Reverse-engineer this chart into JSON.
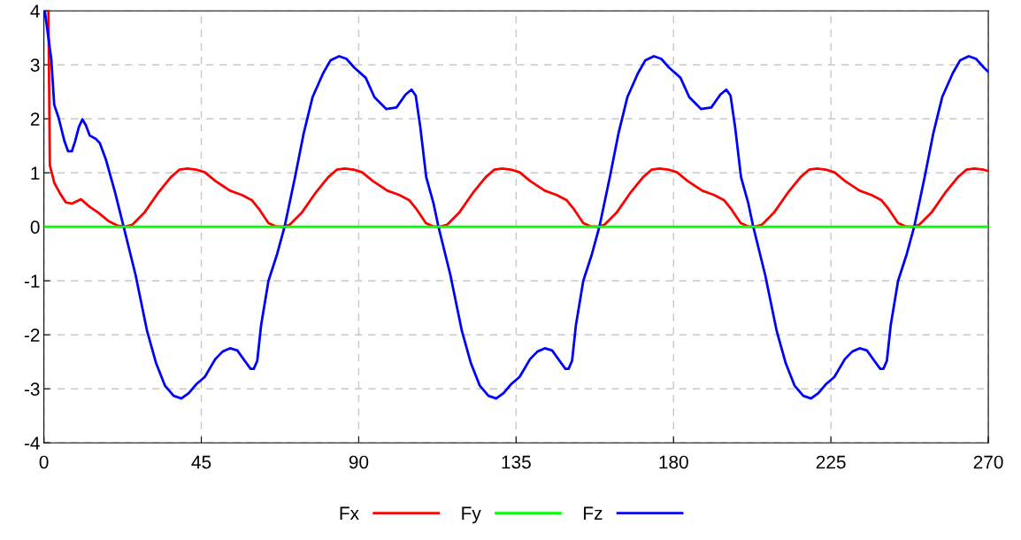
{
  "chart_data": {
    "type": "line",
    "xlim": [
      0,
      270
    ],
    "ylim": [
      -4,
      4
    ],
    "xticks": [
      0,
      45,
      90,
      135,
      180,
      225,
      270
    ],
    "yticks": [
      -4,
      -3,
      -2,
      -1,
      0,
      1,
      2,
      3,
      4
    ],
    "grid": true,
    "legend": "bottom",
    "marker": "none",
    "line_style": "solid",
    "series": [
      {
        "name": "Fx",
        "color": "#ff0000",
        "x": [
          1.3,
          1.7,
          3.0,
          4.6,
          6.3,
          8.0,
          10.6,
          13.1,
          15.6,
          18.6,
          21.1,
          23.2,
          25.3,
          28.7,
          32.9,
          36.3,
          38.8,
          41,
          43.5,
          46,
          49,
          53.2,
          56.6,
          59.5,
          61.6,
          64.2,
          66.2,
          68.2,
          70.3,
          73.7,
          77.9,
          81.3,
          83.8,
          86,
          88.5,
          91,
          94,
          98.2,
          101.6,
          104.5,
          106.6,
          109.2,
          111.2,
          113.2,
          115.3,
          118.7,
          122.9,
          126.3,
          128.8,
          131,
          133.5,
          136,
          139,
          143.2,
          146.6,
          149.5,
          151.6,
          154.2,
          156.2,
          158.2,
          160.3,
          163.7,
          167.9,
          171.3,
          173.8,
          176,
          178.5,
          181,
          184,
          188.2,
          191.6,
          194.5,
          196.6,
          199.2,
          201.2,
          203.2,
          205.3,
          208.7,
          212.9,
          216.3,
          218.8,
          221,
          223.5,
          226,
          229,
          233.2,
          236.6,
          239.5,
          241.6,
          244.2,
          246.2,
          248.2,
          250.3,
          253.7,
          257.9,
          261.3,
          263.8,
          266,
          268.5,
          270
        ],
        "values": [
          4,
          1.14,
          0.81,
          0.62,
          0.45,
          0.43,
          0.51,
          0.37,
          0.26,
          0.1,
          0.02,
          0,
          0.04,
          0.26,
          0.65,
          0.92,
          1.06,
          1.08,
          1.06,
          1.01,
          0.85,
          0.67,
          0.59,
          0.49,
          0.32,
          0.07,
          0.01,
          0,
          0.04,
          0.26,
          0.65,
          0.92,
          1.06,
          1.08,
          1.06,
          1.01,
          0.85,
          0.67,
          0.59,
          0.49,
          0.32,
          0.07,
          0.01,
          0,
          0.04,
          0.26,
          0.65,
          0.92,
          1.06,
          1.08,
          1.06,
          1.01,
          0.85,
          0.67,
          0.59,
          0.49,
          0.32,
          0.07,
          0.01,
          0,
          0.04,
          0.26,
          0.65,
          0.92,
          1.06,
          1.08,
          1.06,
          1.01,
          0.85,
          0.67,
          0.59,
          0.49,
          0.32,
          0.07,
          0.01,
          0,
          0.04,
          0.26,
          0.65,
          0.92,
          1.06,
          1.08,
          1.06,
          1.01,
          0.85,
          0.67,
          0.59,
          0.49,
          0.32,
          0.07,
          0.01,
          0,
          0.04,
          0.26,
          0.65,
          0.92,
          1.06,
          1.08,
          1.06,
          1.03
        ]
      },
      {
        "name": "Fy",
        "color": "#00ff00",
        "x": [
          0,
          270
        ],
        "values": [
          0,
          0
        ]
      },
      {
        "name": "Fz",
        "color": "#0000ff",
        "x": [
          0.25,
          2.1,
          2.95,
          4.2,
          5.9,
          6.9,
          8.0,
          8.9,
          10.0,
          11.0,
          12.0,
          13.1,
          14.8,
          16.0,
          17.7,
          20.3,
          22.8,
          26.2,
          29.5,
          32.1,
          34.6,
          37.1,
          39.3,
          41.4,
          43.5,
          46,
          49,
          51.1,
          53.2,
          55.3,
          57.4,
          59.1,
          60,
          61,
          62.1,
          64.2,
          66.7,
          68.8,
          71.8,
          74.3,
          76.8,
          79.8,
          81.9,
          84.4,
          86.5,
          88.7,
          92,
          94.5,
          97.9,
          100.8,
          103.4,
          105.1,
          106.3,
          107.6,
          109.3,
          111.4,
          112.8,
          116.2,
          119.5,
          122.1,
          124.6,
          127.1,
          129.3,
          131.4,
          133.5,
          136,
          139,
          141.1,
          143.2,
          145.3,
          147.4,
          149.1,
          150,
          151,
          152.1,
          154.2,
          156.7,
          158.8,
          161.8,
          164.3,
          166.8,
          169.8,
          171.9,
          174.4,
          176.5,
          178.7,
          182,
          184.5,
          187.9,
          190.8,
          193.4,
          195.1,
          196.3,
          197.6,
          199.3,
          201.4,
          202.8,
          206.2,
          209.5,
          212.1,
          214.6,
          217.1,
          219.3,
          221.4,
          223.5,
          226,
          229,
          231.1,
          233.2,
          235.3,
          237.4,
          239.1,
          240,
          241,
          242.1,
          244.2,
          246.7,
          248.8,
          251.8,
          254.3,
          256.8,
          259.8,
          261.9,
          264.4,
          266.5,
          268.7,
          270
        ],
        "values": [
          4,
          3.11,
          2.26,
          2.02,
          1.58,
          1.4,
          1.4,
          1.58,
          1.85,
          1.99,
          1.88,
          1.69,
          1.63,
          1.55,
          1.25,
          0.65,
          0,
          -0.89,
          -1.93,
          -2.53,
          -2.94,
          -3.13,
          -3.18,
          -3.08,
          -2.92,
          -2.78,
          -2.45,
          -2.31,
          -2.25,
          -2.29,
          -2.48,
          -2.63,
          -2.63,
          -2.48,
          -1.82,
          -1.0,
          -0.5,
          0,
          0.92,
          1.74,
          2.4,
          2.84,
          3.08,
          3.16,
          3.11,
          2.95,
          2.76,
          2.4,
          2.18,
          2.21,
          2.45,
          2.54,
          2.43,
          1.85,
          0.92,
          0.43,
          0,
          -0.89,
          -1.93,
          -2.53,
          -2.94,
          -3.13,
          -3.18,
          -3.08,
          -2.92,
          -2.78,
          -2.45,
          -2.31,
          -2.25,
          -2.29,
          -2.48,
          -2.63,
          -2.63,
          -2.48,
          -1.82,
          -1.0,
          -0.5,
          0,
          0.92,
          1.74,
          2.4,
          2.84,
          3.08,
          3.16,
          3.11,
          2.95,
          2.76,
          2.4,
          2.18,
          2.21,
          2.45,
          2.54,
          2.43,
          1.85,
          0.92,
          0.43,
          0,
          -0.89,
          -1.93,
          -2.53,
          -2.94,
          -3.13,
          -3.18,
          -3.08,
          -2.92,
          -2.78,
          -2.45,
          -2.31,
          -2.25,
          -2.29,
          -2.48,
          -2.63,
          -2.63,
          -2.48,
          -1.82,
          -1.0,
          -0.5,
          0,
          0.92,
          1.74,
          2.4,
          2.84,
          3.08,
          3.16,
          3.11,
          2.95,
          2.87
        ]
      }
    ]
  }
}
